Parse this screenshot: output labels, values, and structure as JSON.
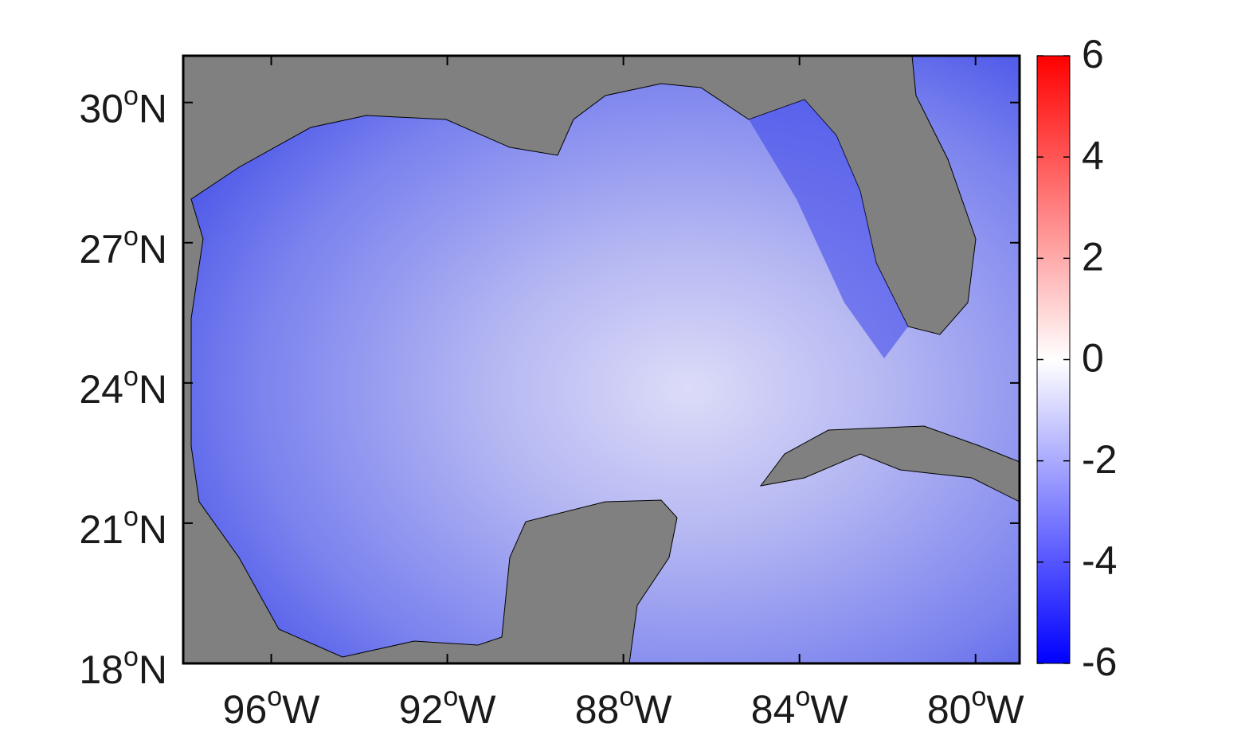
{
  "chart_data": {
    "type": "map",
    "xlim": [
      -98,
      -79
    ],
    "ylim": [
      18,
      31
    ],
    "xticks": [
      {
        "value": -96,
        "label": "96oW"
      },
      {
        "value": -92,
        "label": "92oW"
      },
      {
        "value": -88,
        "label": "88oW"
      },
      {
        "value": -84,
        "label": "84oW"
      },
      {
        "value": -80,
        "label": "80oW"
      }
    ],
    "yticks": [
      {
        "value": 18,
        "label": "18oN"
      },
      {
        "value": 21,
        "label": "21oN"
      },
      {
        "value": 24,
        "label": "24oN"
      },
      {
        "value": 27,
        "label": "27oN"
      },
      {
        "value": 30,
        "label": "30oN"
      }
    ],
    "colorbar": {
      "lim": [
        -6,
        6
      ],
      "ticks": [
        -6,
        -4,
        -2,
        0,
        2,
        4,
        6
      ],
      "colors": [
        "#0000ff",
        "#ffffff",
        "#ff0000"
      ]
    }
  }
}
